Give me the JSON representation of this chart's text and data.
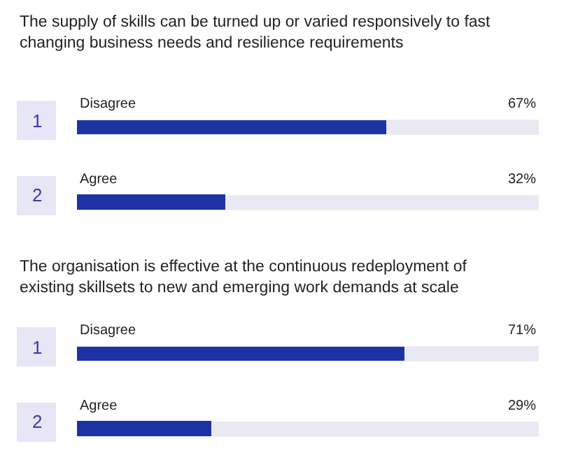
{
  "chart_data": [
    {
      "type": "bar",
      "orientation": "horizontal",
      "title": "The supply of skills can be turned up or varied responsively to fast changing business needs and resilience requirements",
      "categories": [
        "Disagree",
        "Agree"
      ],
      "values": [
        67,
        32
      ],
      "value_labels": [
        "67%",
        "32%"
      ],
      "color": "#1d33a3",
      "xlim": [
        0,
        100
      ],
      "annotations": [
        "1",
        "2"
      ],
      "tick_labels": "y"
    },
    {
      "type": "bar",
      "orientation": "horizontal",
      "title": "The organisation is effective at the continuous redeployment of existing skillsets to new and emerging work demands at scale",
      "categories": [
        "Disagree",
        "Agree"
      ],
      "values": [
        71,
        29
      ],
      "value_labels": [
        "71%",
        "29%"
      ],
      "color": "#1d33a3",
      "xlim": [
        0,
        100
      ],
      "annotations": [
        "1",
        "2"
      ],
      "tick_labels": "y"
    }
  ]
}
